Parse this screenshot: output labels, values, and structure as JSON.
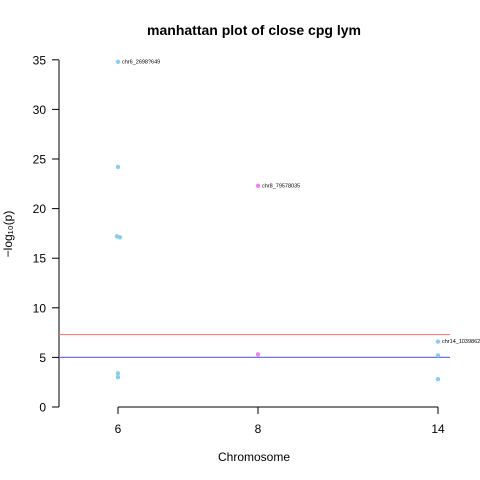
{
  "chart_data": {
    "type": "scatter",
    "title": "manhattan plot of close cpg lym",
    "xlabel": "Chromosome",
    "ylabel": "−log₁₀(p)",
    "x_ticks": [
      {
        "pos": 6,
        "label": "6"
      },
      {
        "pos": 8,
        "label": "8"
      },
      {
        "pos": 14,
        "label": "14"
      }
    ],
    "y_ticks": [
      0,
      5,
      10,
      15,
      20,
      25,
      30,
      35
    ],
    "ylim": [
      0,
      35
    ],
    "grid": false,
    "thresholds": [
      {
        "value": 7.3,
        "color": "#ef8080"
      },
      {
        "value": 5.0,
        "color": "#7070ee"
      }
    ],
    "points": [
      {
        "chrom": 6,
        "y": 34.8,
        "color": "#87ceeb"
      },
      {
        "chrom": 6,
        "y": 24.2,
        "color": "#87ceeb"
      },
      {
        "chrom": 6,
        "y": 17.2,
        "color": "#87ceeb"
      },
      {
        "chrom": 6,
        "y": 17.1,
        "color": "#87ceeb"
      },
      {
        "chrom": 6,
        "y": 3.4,
        "color": "#87ceeb"
      },
      {
        "chrom": 6,
        "y": 3.0,
        "color": "#87ceeb"
      },
      {
        "chrom": 8,
        "y": 22.3,
        "color": "#ee82ee"
      },
      {
        "chrom": 8,
        "y": 5.3,
        "color": "#ee82ee"
      },
      {
        "chrom": 14,
        "y": 6.6,
        "color": "#87ceeb"
      },
      {
        "chrom": 14,
        "y": 5.2,
        "color": "#87ceeb"
      },
      {
        "chrom": 14,
        "y": 2.8,
        "color": "#87ceeb"
      }
    ],
    "annotations": [
      {
        "chrom": 6,
        "y": 34.8,
        "text": "chr6_2698?649"
      },
      {
        "chrom": 8,
        "y": 22.3,
        "text": "chr8_79578035"
      },
      {
        "chrom": 14,
        "y": 6.6,
        "text": "chr14_1039862"
      }
    ]
  }
}
